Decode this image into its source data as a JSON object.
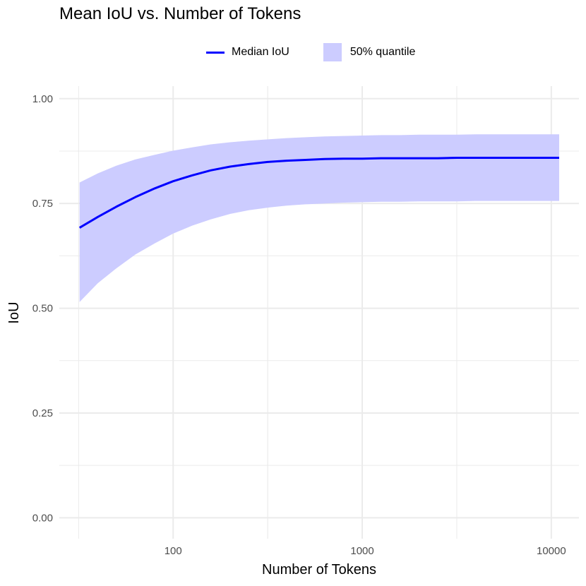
{
  "chart_data": {
    "type": "area",
    "title": "Mean IoU vs. Number of Tokens",
    "xlabel": "Number of Tokens",
    "ylabel": "IoU",
    "x_scale": "log10",
    "xlim": [
      25,
      14000
    ],
    "ylim": [
      -0.05,
      1.03
    ],
    "x_ticks": [
      100,
      1000,
      10000
    ],
    "x_tick_labels": [
      "100",
      "1000",
      "10000"
    ],
    "y_ticks": [
      0,
      0.25,
      0.5,
      0.75,
      1
    ],
    "y_tick_labels": [
      "0.00",
      "0.25",
      "0.50",
      "0.75",
      "1.00"
    ],
    "grid": true,
    "legend_position": "top",
    "legend": {
      "line_label": "Median IoU",
      "band_label": "50% quantile"
    },
    "colors": {
      "line": "#0000ff",
      "band": "#ccccff",
      "grid": "#ebebeb"
    },
    "x": [
      32,
      40,
      50,
      63,
      80,
      100,
      126,
      158,
      200,
      251,
      316,
      398,
      501,
      631,
      794,
      1000,
      1259,
      1585,
      1995,
      2512,
      3162,
      3981,
      5012,
      6310,
      7943,
      10000,
      11000
    ],
    "series": [
      {
        "name": "Median IoU",
        "values": [
          0.692,
          0.718,
          0.742,
          0.765,
          0.786,
          0.803,
          0.817,
          0.829,
          0.838,
          0.844,
          0.849,
          0.852,
          0.854,
          0.856,
          0.857,
          0.857,
          0.858,
          0.858,
          0.858,
          0.858,
          0.859,
          0.859,
          0.859,
          0.859,
          0.859,
          0.859,
          0.859
        ]
      },
      {
        "name": "50% quantile",
        "lower": [
          0.515,
          0.56,
          0.595,
          0.628,
          0.655,
          0.678,
          0.697,
          0.712,
          0.725,
          0.734,
          0.74,
          0.745,
          0.748,
          0.75,
          0.752,
          0.753,
          0.754,
          0.754,
          0.755,
          0.755,
          0.755,
          0.756,
          0.756,
          0.756,
          0.756,
          0.756,
          0.756
        ],
        "upper": [
          0.8,
          0.822,
          0.84,
          0.855,
          0.866,
          0.876,
          0.884,
          0.891,
          0.896,
          0.9,
          0.903,
          0.906,
          0.908,
          0.91,
          0.911,
          0.912,
          0.913,
          0.913,
          0.914,
          0.914,
          0.914,
          0.915,
          0.915,
          0.915,
          0.915,
          0.915,
          0.915
        ]
      }
    ]
  }
}
